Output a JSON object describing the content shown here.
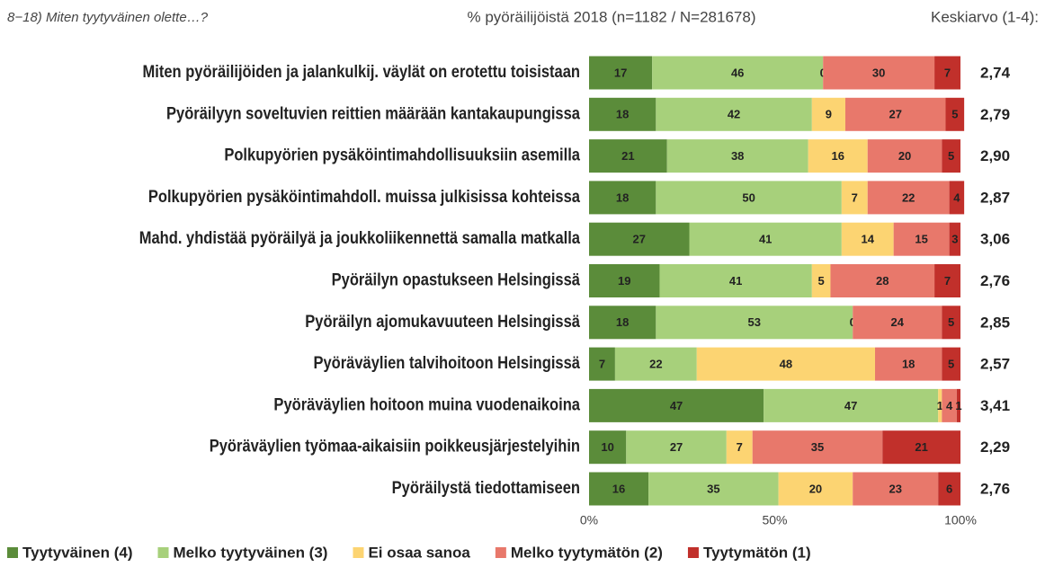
{
  "chart_data": {
    "type": "stacked_bar_horizontal",
    "subtitle": "8−18) Miten tyytyväinen olette…?",
    "title": "% pyöräilijöistä 2018 (n=1182 / N=281678)",
    "categories": [
      "Miten pyöräilijöiden ja jalankulkij. väylät on erotettu toisistaan",
      "Pyöräilyyn soveltuvien reittien määrään kantakaupungissa",
      "Polkupyörien pysäköintimahdollisuuksiin asemilla",
      "Polkupyörien pysäköintimahdoll. muissa julkisissa kohteissa",
      "Mahd. yhdistää pyöräilyä ja joukkoliikennettä samalla matkalla",
      "Pyöräilyn opastukseen Helsingissä",
      "Pyöräilyn ajomukavuuteen Helsingissä",
      "Pyöräväylien talvihoitoon Helsingissä",
      "Pyöräväylien hoitoon muina vuodenaikoina",
      "Pyöräväylien työmaa-aikaisiin poikkeusjärjestelyihin",
      "Pyöräilystä tiedottamiseen"
    ],
    "series": [
      {
        "name": "Tyytyväinen (4)",
        "color": "#5b8c3a",
        "values": [
          17,
          18,
          21,
          18,
          27,
          19,
          18,
          7,
          47,
          10,
          16
        ]
      },
      {
        "name": "Melko tyytyväinen (3)",
        "color": "#a7d07b",
        "values": [
          46,
          42,
          38,
          50,
          41,
          41,
          53,
          22,
          47,
          27,
          35
        ]
      },
      {
        "name": "Ei osaa sanoa",
        "color": "#fcd472",
        "values": [
          0,
          9,
          16,
          7,
          14,
          5,
          0,
          48,
          1,
          7,
          20
        ]
      },
      {
        "name": "Melko tyytymätön (2)",
        "color": "#e8786b",
        "values": [
          30,
          27,
          20,
          22,
          15,
          28,
          24,
          18,
          4,
          35,
          23
        ]
      },
      {
        "name": "Tyytymätön (1)",
        "color": "#c1302b",
        "values": [
          7,
          5,
          5,
          4,
          3,
          7,
          5,
          5,
          1,
          21,
          6
        ]
      }
    ],
    "averages": {
      "title": "Keskiarvo (1-4):",
      "values": [
        2.74,
        2.79,
        2.9,
        2.87,
        3.06,
        2.76,
        2.85,
        2.57,
        3.41,
        2.29,
        2.76
      ],
      "value_labels": [
        "2,74",
        "2,79",
        "2,90",
        "2,87",
        "3,06",
        "2,76",
        "2,85",
        "2,57",
        "3,41",
        "2,29",
        "2,76"
      ]
    },
    "xlim": [
      0,
      100
    ],
    "xticks": [
      {
        "value": 0,
        "label": "0%"
      },
      {
        "value": 50,
        "label": "50%"
      },
      {
        "value": 100,
        "label": "100%"
      }
    ],
    "legend": "bottom"
  }
}
